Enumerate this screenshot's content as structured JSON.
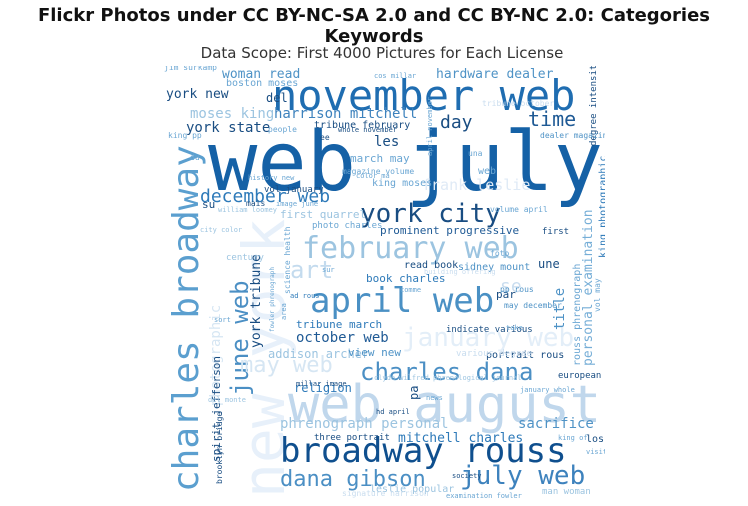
{
  "chart_data": {
    "type": "wordcloud",
    "title": "Flickr Photos under CC BY-NC-SA 2.0 and CC BY-NC 2.0: Categories Keywords",
    "subtitle": "Data Scope: First 4000 Pictures for Each License",
    "colormap": "Blues",
    "words": [
      {
        "text": "web july",
        "weight": 1.0
      },
      {
        "text": "new york",
        "weight": 0.95
      },
      {
        "text": "web august",
        "weight": 0.75
      },
      {
        "text": "november web",
        "weight": 0.68
      },
      {
        "text": "charles broadway",
        "weight": 0.62
      },
      {
        "text": "broadway rouss",
        "weight": 0.55
      },
      {
        "text": "april web",
        "weight": 0.53
      },
      {
        "text": "february web",
        "weight": 0.48
      },
      {
        "text": "york city",
        "weight": 0.45
      },
      {
        "text": "june web",
        "weight": 0.42
      },
      {
        "text": "july web",
        "weight": 0.41
      },
      {
        "text": "charles dana",
        "weight": 0.4
      },
      {
        "text": "january web",
        "weight": 0.38
      },
      {
        "text": "dana gibson",
        "weight": 0.37
      },
      {
        "text": "may web",
        "weight": 0.35
      },
      {
        "text": "art",
        "weight": 0.33
      },
      {
        "text": "december web",
        "weight": 0.32
      },
      {
        "text": "time",
        "weight": 0.3
      },
      {
        "text": "day",
        "weight": 0.3
      },
      {
        "text": "frank leslie",
        "weight": 0.28
      },
      {
        "text": "se",
        "weight": 0.28
      },
      {
        "text": "harrison mitchell",
        "weight": 0.27
      },
      {
        "text": "york state",
        "weight": 0.26
      },
      {
        "text": "hardware dealer",
        "weight": 0.26
      },
      {
        "text": "woman read",
        "weight": 0.26
      },
      {
        "text": "york new",
        "weight": 0.26
      },
      {
        "text": "moses king",
        "weight": 0.26
      },
      {
        "text": "les",
        "weight": 0.25
      },
      {
        "text": "del",
        "weight": 0.24
      },
      {
        "text": "mitchell charles",
        "weight": 0.24
      },
      {
        "text": "october web",
        "weight": 0.24
      },
      {
        "text": "york tribune",
        "weight": 0.24
      },
      {
        "text": "phrenograph personal",
        "weight": 0.24
      },
      {
        "text": "personal examination",
        "weight": 0.24
      },
      {
        "text": "sacrifice",
        "weight": 0.23
      },
      {
        "text": "addison archer",
        "weight": 0.23
      },
      {
        "text": "photographic",
        "weight": 0.23
      },
      {
        "text": "title",
        "weight": 0.22
      },
      {
        "text": "religion",
        "weight": 0.22
      },
      {
        "text": "une",
        "weight": 0.22
      },
      {
        "text": "view new",
        "weight": 0.2
      },
      {
        "text": "tribune march",
        "weight": 0.2
      },
      {
        "text": "tribune february",
        "weight": 0.2
      },
      {
        "text": "first quarrel",
        "weight": 0.2
      },
      {
        "text": "prominent progressive",
        "weight": 0.2
      },
      {
        "text": "read book",
        "weight": 0.2
      },
      {
        "text": "sidney mount",
        "weight": 0.2
      },
      {
        "text": "book charles",
        "weight": 0.2
      },
      {
        "text": "spirit jefferson",
        "weight": 0.2
      },
      {
        "text": "rouss phrenograph",
        "weight": 0.2
      },
      {
        "text": "king photographic",
        "weight": 0.2
      },
      {
        "text": "march may",
        "weight": 0.19
      },
      {
        "text": "boston moses",
        "weight": 0.19
      },
      {
        "text": "king moses",
        "weight": 0.19
      },
      {
        "text": "su",
        "weight": 0.19
      },
      {
        "text": "los",
        "weight": 0.19
      },
      {
        "text": "par",
        "weight": 0.19
      },
      {
        "text": "pa",
        "weight": 0.19
      },
      {
        "text": "portrait rous",
        "weight": 0.18
      },
      {
        "text": "leslie popular",
        "weight": 0.18
      },
      {
        "text": "three portrait",
        "weight": 0.17
      },
      {
        "text": "brooklyn bridge",
        "weight": 0.16
      },
      {
        "text": "european",
        "weight": 0.16
      },
      {
        "text": "vol january",
        "weight": 0.16
      },
      {
        "text": "degree intensity",
        "weight": 0.16
      },
      {
        "text": "dealer magazine",
        "weight": 0.16
      },
      {
        "text": "first",
        "weight": 0.16
      },
      {
        "text": "vol may",
        "weight": 0.16
      },
      {
        "text": "photo charles",
        "weight": 0.16
      },
      {
        "text": "science health",
        "weight": 0.16
      },
      {
        "text": "century",
        "weight": 0.16
      },
      {
        "text": "indicate various",
        "weight": 0.16
      },
      {
        "text": "tribune october",
        "weight": 0.16
      },
      {
        "text": "may december",
        "weight": 0.16
      },
      {
        "text": "pp rous",
        "weight": 0.16
      },
      {
        "text": "magazine volume",
        "weight": 0.16
      },
      {
        "text": "volume april",
        "weight": 0.16
      },
      {
        "text": "foto",
        "weight": 0.16
      },
      {
        "text": "various degree",
        "weight": 0.16
      },
      {
        "text": "building offering",
        "weight": 0.16
      },
      {
        "text": "ad rous",
        "weight": 0.16
      },
      {
        "text": "color ma",
        "weight": 0.16
      },
      {
        "text": "history new",
        "weight": 0.16
      },
      {
        "text": "image june",
        "weight": 0.16
      },
      {
        "text": "signature harrison",
        "weight": 0.16
      },
      {
        "text": "man woman",
        "weight": 0.16
      },
      {
        "text": "examination fowler",
        "weight": 0.16
      },
      {
        "text": "hd april",
        "weight": 0.16
      },
      {
        "text": "society",
        "weight": 0.16
      },
      {
        "text": "fowler phrenograph",
        "weight": 0.16
      },
      {
        "text": "millar image",
        "weight": 0.16
      },
      {
        "text": "clyde wilfred phrenological journal",
        "weight": 0.16
      },
      {
        "text": "april november",
        "weight": 0.16
      },
      {
        "text": "whole november",
        "weight": 0.16
      },
      {
        "text": "jim surkamp",
        "weight": 0.16
      },
      {
        "text": "king pp",
        "weight": 0.16
      },
      {
        "text": "una",
        "weight": 0.16
      },
      {
        "text": "people",
        "weight": 0.16
      },
      {
        "text": "du",
        "weight": 0.16
      },
      {
        "text": "william loomey",
        "weight": 0.16
      },
      {
        "text": "city color",
        "weight": 0.16
      },
      {
        "text": "mais",
        "weight": 0.16
      },
      {
        "text": "ee",
        "weight": 0.16
      },
      {
        "text": "comme",
        "weight": 0.16
      },
      {
        "text": "area",
        "weight": 0.16
      },
      {
        "text": "sur",
        "weight": 0.16
      },
      {
        "text": "del monte",
        "weight": 0.16
      },
      {
        "text": "sort",
        "weight": 0.16
      },
      {
        "text": "news",
        "weight": 0.16
      },
      {
        "text": "visit",
        "weight": 0.16
      },
      {
        "text": "king of",
        "weight": 0.16
      },
      {
        "text": "take",
        "weight": 0.16
      },
      {
        "text": "cos millar",
        "weight": 0.16
      },
      {
        "text": "january whole",
        "weight": 0.16
      },
      {
        "text": "web",
        "weight": 0.16
      }
    ]
  }
}
